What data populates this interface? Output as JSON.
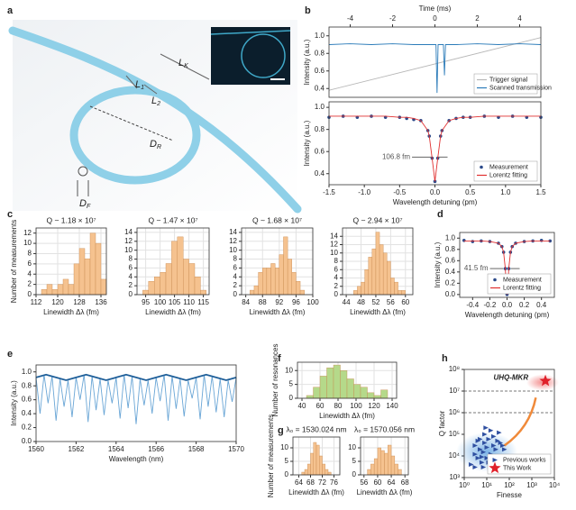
{
  "panel_labels": [
    "a",
    "b",
    "c",
    "d",
    "e",
    "f",
    "g",
    "h"
  ],
  "diagram": {
    "labels": [
      {
        "main": "L",
        "sub": "K"
      },
      {
        "main": "L",
        "sub": "1"
      },
      {
        "main": "L",
        "sub": "2"
      },
      {
        "main": "D",
        "sub": "R"
      },
      {
        "main": "D",
        "sub": "F"
      }
    ]
  },
  "chart_data": [
    {
      "type": "line",
      "xaxis": "top",
      "xlabel": "Time (ms)",
      "ylabel": "Intensity (a.u.)",
      "xlim": [
        -5,
        5
      ],
      "xticks": [
        -4,
        -2,
        0,
        2,
        4
      ],
      "ylim": [
        0.3,
        1.1
      ],
      "yticks": [
        0.4,
        0.6,
        0.8,
        {
          "value": 1,
          "label": "1.0"
        }
      ],
      "x": [
        -5,
        -4,
        -3,
        -2,
        -1,
        0,
        0.05,
        0.1,
        0.15,
        0.2,
        0.3,
        0.4,
        0.45,
        0.5,
        1,
        2,
        3,
        4,
        5
      ],
      "legend": "lower right",
      "series": [
        {
          "name": "Trigger signal",
          "color": "#b8b8b8",
          "x": [
            -5,
            5
          ],
          "values": [
            0.38,
            0.98
          ]
        },
        {
          "name": "Scanned transmission",
          "color": "#2b7bb9",
          "values": [
            0.9,
            0.91,
            0.9,
            0.91,
            0.9,
            0.9,
            0.9,
            0.35,
            0.9,
            0.9,
            0.9,
            0.9,
            0.55,
            0.9,
            0.9,
            0.91,
            0.9,
            0.91,
            0.9
          ]
        }
      ]
    },
    {
      "type": "scatter",
      "xlabel": "Wavelength detuning (pm)",
      "ylabel": "Intensity (a.u.)",
      "xlim": [
        -1.5,
        1.5
      ],
      "xticks": [
        -1.5,
        {
          "value": -1,
          "label": "-1.0"
        },
        -0.5,
        {
          "value": 0,
          "label": "0.0"
        },
        0.5,
        {
          "value": 1,
          "label": "1.0"
        },
        1.5
      ],
      "ylim": [
        0.3,
        1.05
      ],
      "yticks": [
        0.4,
        0.6,
        0.8,
        {
          "value": 1,
          "label": "1.0"
        }
      ],
      "x": [
        -1.5,
        -1.3,
        -1.1,
        -0.9,
        -0.7,
        -0.5,
        -0.4,
        -0.3,
        -0.2,
        -0.1,
        -0.08,
        -0.04,
        0,
        0.04,
        0.08,
        0.1,
        0.2,
        0.3,
        0.4,
        0.5,
        0.7,
        0.9,
        1.1,
        1.3,
        1.5
      ],
      "legend": "lower right",
      "annotations": [
        "106.8 fm"
      ],
      "series": [
        {
          "name": "Measurement",
          "color": "#2c4a8a",
          "style": "markers",
          "values": [
            0.91,
            0.92,
            0.91,
            0.92,
            0.91,
            0.91,
            0.9,
            0.89,
            0.88,
            0.79,
            0.74,
            0.54,
            0.33,
            0.54,
            0.74,
            0.79,
            0.88,
            0.9,
            0.91,
            0.91,
            0.92,
            0.91,
            0.92,
            0.91,
            0.91
          ]
        },
        {
          "name": "Lorentz fitting",
          "color": "#e03030",
          "style": "line",
          "values": [
            0.92,
            0.92,
            0.92,
            0.92,
            0.92,
            0.91,
            0.91,
            0.9,
            0.88,
            0.79,
            0.74,
            0.54,
            0.33,
            0.54,
            0.74,
            0.79,
            0.88,
            0.9,
            0.91,
            0.91,
            0.92,
            0.92,
            0.92,
            0.92,
            0.92
          ]
        }
      ]
    },
    {
      "type": "histogram",
      "title": "Q ~ 1.18 × 10⁷",
      "xlabel": "Linewidth Δλ (fm)",
      "ylabel": "Number of measurements",
      "grid": true,
      "xlim": [
        112,
        138
      ],
      "xticks": [
        112,
        120,
        128,
        136
      ],
      "ylim": [
        0,
        13
      ],
      "yticks": [
        0,
        2,
        4,
        6,
        8,
        10,
        12
      ],
      "color": "#f5c28f",
      "bins": [
        114,
        116,
        118,
        120,
        122,
        124,
        126,
        128,
        130,
        132,
        134,
        136,
        138
      ],
      "counts": [
        1,
        2,
        1,
        2,
        3,
        2,
        6,
        9,
        7,
        12,
        10,
        3
      ]
    },
    {
      "type": "histogram",
      "title": "Q ~ 1.47 × 10⁷",
      "xlabel": "Linewidth Δλ (fm)",
      "grid": true,
      "xlim": [
        92,
        117
      ],
      "xticks": [
        95,
        100,
        105,
        110,
        115
      ],
      "ylim": [
        0,
        15
      ],
      "yticks": [
        0,
        2,
        4,
        6,
        8,
        10,
        12,
        14
      ],
      "color": "#f5c28f",
      "bins": [
        94,
        96,
        98,
        100,
        102,
        104,
        106,
        108,
        110,
        112,
        114,
        116
      ],
      "counts": [
        1,
        3,
        4,
        5,
        7,
        12,
        13,
        8,
        7,
        4,
        1
      ]
    },
    {
      "type": "histogram",
      "title": "Q ~ 1.68 × 10⁷",
      "xlabel": "Linewidth Δλ (fm)",
      "grid": true,
      "xlim": [
        83,
        100
      ],
      "xticks": [
        84,
        88,
        92,
        96,
        100
      ],
      "ylim": [
        0,
        15
      ],
      "yticks": [
        0,
        2,
        4,
        6,
        8,
        10,
        12,
        14
      ],
      "color": "#f5c28f",
      "bins": [
        85,
        86,
        87,
        88,
        89,
        90,
        91,
        92,
        93,
        94,
        95,
        96,
        97,
        98
      ],
      "counts": [
        1,
        2,
        5,
        6,
        6,
        7,
        6,
        9,
        13,
        8,
        5,
        3,
        1
      ]
    },
    {
      "type": "histogram",
      "title": "Q ~ 2.94 × 10⁷",
      "xlabel": "Linewidth Δλ (fm)",
      "grid": true,
      "xlim": [
        43,
        62
      ],
      "xticks": [
        44,
        48,
        52,
        56,
        60
      ],
      "ylim": [
        0,
        16
      ],
      "yticks": [
        0,
        2,
        4,
        6,
        8,
        10,
        12,
        14
      ],
      "color": "#f5c28f",
      "bins": [
        46,
        47,
        48,
        49,
        50,
        51,
        52,
        53,
        54,
        55,
        56,
        57,
        58,
        59,
        60
      ],
      "counts": [
        1,
        2,
        3,
        6,
        9,
        11,
        15,
        12,
        10,
        8,
        4,
        3,
        1,
        1
      ]
    },
    {
      "type": "scatter",
      "xlabel": "Wavelength detuning (pm)",
      "ylabel": "Intensity (a.u.)",
      "xlim": [
        -0.55,
        0.55
      ],
      "xticks": [
        -0.4,
        -0.2,
        {
          "value": 0,
          "label": "0.0"
        },
        0.2,
        0.4
      ],
      "ylim": [
        -0.05,
        1.1
      ],
      "yticks": [
        {
          "value": 0,
          "label": "0.0"
        },
        0.2,
        0.4,
        0.6,
        0.8,
        {
          "value": 1,
          "label": "1.0"
        }
      ],
      "x": [
        -0.5,
        -0.4,
        -0.3,
        -0.2,
        -0.1,
        -0.06,
        -0.04,
        -0.02,
        -0.01,
        0,
        0.01,
        0.02,
        0.04,
        0.06,
        0.1,
        0.2,
        0.3,
        0.4,
        0.5
      ],
      "legend": "lower right",
      "annotations": [
        "41.5 fm"
      ],
      "series": [
        {
          "name": "Measurement",
          "color": "#2c4a8a",
          "style": "markers",
          "values": [
            0.96,
            0.94,
            0.95,
            0.94,
            0.91,
            0.85,
            0.75,
            0.46,
            0.18,
            0.0,
            0.18,
            0.46,
            0.75,
            0.85,
            0.91,
            0.94,
            0.95,
            0.96,
            0.95
          ]
        },
        {
          "name": "Lorentz fitting",
          "color": "#e03030",
          "style": "line",
          "values": [
            0.95,
            0.95,
            0.95,
            0.94,
            0.91,
            0.85,
            0.75,
            0.46,
            0.18,
            0.0,
            0.18,
            0.46,
            0.75,
            0.85,
            0.91,
            0.94,
            0.95,
            0.95,
            0.95
          ]
        }
      ]
    },
    {
      "type": "line",
      "xlabel": "Wavelength (nm)",
      "ylabel": "Intensity (a.u.)",
      "xlim": [
        1560,
        1570
      ],
      "xticks": [
        1560,
        1562,
        1564,
        1566,
        1568,
        1570
      ],
      "ylim": [
        0,
        1.1
      ],
      "yticks": [
        {
          "value": 0,
          "label": "0.0"
        },
        0.2,
        0.4,
        0.6,
        0.8,
        {
          "value": 1,
          "label": "1.0"
        }
      ],
      "x": [
        1560,
        1560.2,
        1560.4,
        1560.6,
        1560.8,
        1561,
        1561.2,
        1561.4,
        1561.6,
        1561.8,
        1562,
        1562.2,
        1562.4,
        1562.6,
        1562.8,
        1563,
        1563.2,
        1563.4,
        1563.6,
        1563.8,
        1564,
        1564.2,
        1564.4,
        1564.6,
        1564.8,
        1565,
        1565.2,
        1565.4,
        1565.6,
        1565.8,
        1566,
        1566.2,
        1566.4,
        1566.6,
        1566.8,
        1567,
        1567.2,
        1567.4,
        1567.6,
        1567.8,
        1568,
        1568.2,
        1568.4,
        1568.6,
        1568.8,
        1569,
        1569.2,
        1569.4,
        1569.6,
        1569.8,
        1570
      ],
      "series": [
        {
          "color": "#6aa6d6",
          "values": [
            0.92,
            0.4,
            0.96,
            0.55,
            0.94,
            0.3,
            0.9,
            0.5,
            0.88,
            0.35,
            0.92,
            0.6,
            0.96,
            0.28,
            0.94,
            0.45,
            0.9,
            0.38,
            0.88,
            0.55,
            0.92,
            0.33,
            0.96,
            0.48,
            0.94,
            0.25,
            0.9,
            0.52,
            0.88,
            0.4,
            0.92,
            0.58,
            0.96,
            0.3,
            0.94,
            0.47,
            0.9,
            0.36,
            0.88,
            0.62,
            0.92,
            0.32,
            0.96,
            0.5,
            0.94,
            0.42,
            0.9,
            0.35,
            0.88,
            0.57,
            0.92
          ]
        },
        {
          "color": "#1f5f99",
          "x": [
            1560,
            1560.5,
            1561,
            1561.5,
            1562,
            1562.5,
            1563,
            1563.5,
            1564,
            1564.5,
            1565,
            1565.5,
            1566,
            1566.5,
            1567,
            1567.5,
            1568,
            1568.5,
            1569,
            1569.5,
            1570
          ],
          "values": [
            0.92,
            0.96,
            0.92,
            0.88,
            0.92,
            0.96,
            0.92,
            0.88,
            0.92,
            0.96,
            0.92,
            0.88,
            0.92,
            0.96,
            0.92,
            0.88,
            0.92,
            0.96,
            0.92,
            0.88,
            0.92
          ]
        }
      ]
    },
    {
      "type": "histogram",
      "xlabel": "Linewidth Δλ (fm)",
      "ylabel": "Number of resonances",
      "grid": true,
      "xlim": [
        35,
        145
      ],
      "xticks": [
        40,
        60,
        80,
        100,
        120,
        140
      ],
      "ylim": [
        0,
        13
      ],
      "yticks": [
        0,
        5,
        10
      ],
      "color": "#b5d98a",
      "bins": [
        45,
        52.5,
        60,
        67.5,
        75,
        82.5,
        90,
        97.5,
        105,
        112.5,
        120,
        127.5,
        135
      ],
      "counts": [
        1,
        4,
        8,
        11,
        12,
        10,
        7,
        5,
        4,
        2,
        1,
        3
      ]
    },
    {
      "type": "histogram",
      "title": "λ₀ = 1530.024 nm",
      "xlabel": "Linewidth Δλ (fm)",
      "ylabel": "Number of measurements",
      "grid": true,
      "xlim": [
        62,
        78
      ],
      "xticks": [
        64,
        68,
        72,
        76
      ],
      "ylim": [
        0,
        14
      ],
      "yticks": [
        0,
        5,
        10
      ],
      "color": "#f5c28f",
      "bins": [
        65,
        66,
        67,
        68,
        69,
        70,
        71,
        72,
        73,
        74,
        75
      ],
      "counts": [
        1,
        2,
        4,
        8,
        12,
        11,
        7,
        4,
        2,
        1
      ]
    },
    {
      "type": "histogram",
      "title": "λ₀ = 1570.056 nm",
      "xlabel": "Linewidth Δλ (fm)",
      "grid": true,
      "xlim": [
        55,
        69
      ],
      "xticks": [
        56,
        60,
        64,
        68
      ],
      "ylim": [
        0,
        14
      ],
      "yticks": [
        0,
        5,
        10
      ],
      "color": "#f5c28f",
      "bins": [
        57,
        58,
        59,
        60,
        61,
        62,
        63,
        64,
        65,
        66,
        67
      ],
      "counts": [
        2,
        4,
        6,
        10,
        9,
        8,
        11,
        7,
        4,
        2
      ]
    },
    {
      "type": "scatter",
      "xlabel": "Finesse",
      "ylabel": "Q factor",
      "xlog": true,
      "ylog": true,
      "xlim": [
        1,
        10000
      ],
      "xticks": [
        {
          "value": 1,
          "label": "10⁰"
        },
        {
          "value": 10,
          "label": "10¹"
        },
        {
          "value": 100,
          "label": "10²"
        },
        {
          "value": 1000,
          "label": "10³"
        },
        {
          "value": 10000,
          "label": "10⁴"
        }
      ],
      "ylim": [
        1000,
        100000000
      ],
      "yticks": [
        {
          "value": 1000,
          "label": "10³"
        },
        {
          "value": 10000,
          "label": "10⁴"
        },
        {
          "value": 100000,
          "label": "10⁵"
        },
        {
          "value": 1000000,
          "label": "10⁶"
        },
        {
          "value": 10000000,
          "label": "10⁷"
        },
        {
          "value": 100000000,
          "label": "10⁸"
        }
      ],
      "reference_lines": [
        1000000,
        10000000
      ],
      "legend": "lower right",
      "annotations": [
        "UHQ-MKR"
      ],
      "series": [
        {
          "name": "Previous works",
          "color": "#2f4fa0",
          "marker": "triangle",
          "style": "markers",
          "x": [
            2,
            3,
            3,
            4,
            5,
            5,
            6,
            7,
            8,
            8,
            10,
            10,
            12,
            15,
            15,
            20,
            20,
            25,
            30,
            40,
            50,
            60,
            3,
            6,
            9,
            12,
            18,
            4,
            7,
            35
          ],
          "values": [
            4000,
            12000,
            30000,
            8000,
            20000,
            60000,
            5000,
            15000,
            40000,
            100000,
            8000,
            25000,
            60000,
            12000,
            150000,
            30000,
            80000,
            20000,
            50000,
            40000,
            30000,
            20000,
            3000,
            9000,
            200000,
            5000,
            10000,
            50000,
            3000,
            120000
          ]
        },
        {
          "name": "This Work",
          "color": "#e0202a",
          "marker": "star",
          "style": "markers",
          "x": [
            4000
          ],
          "values": [
            29400000
          ]
        }
      ]
    }
  ]
}
